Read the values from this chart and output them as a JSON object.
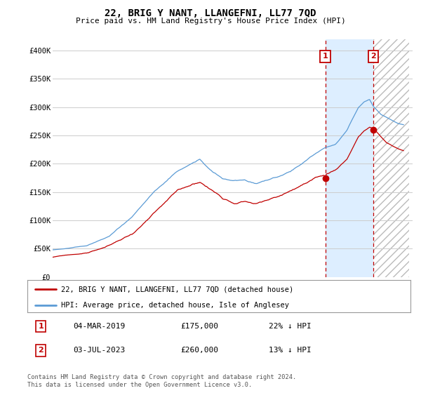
{
  "title": "22, BRIG Y NANT, LLANGEFNI, LL77 7QD",
  "subtitle": "Price paid vs. HM Land Registry's House Price Index (HPI)",
  "ylim": [
    0,
    420000
  ],
  "yticks": [
    0,
    50000,
    100000,
    150000,
    200000,
    250000,
    300000,
    350000,
    400000
  ],
  "ytick_labels": [
    "£0",
    "£50K",
    "£100K",
    "£150K",
    "£200K",
    "£250K",
    "£300K",
    "£350K",
    "£400K"
  ],
  "hpi_color": "#5b9bd5",
  "price_color": "#c00000",
  "shade_color": "#ddeeff",
  "hatch_color": "#cccccc",
  "marker1_month": 289,
  "marker2_month": 340,
  "marker1_label": "1",
  "marker2_label": "2",
  "marker1_price_val": 175000,
  "marker2_price_val": 260000,
  "marker1_date": "04-MAR-2019",
  "marker1_price": "£175,000",
  "marker1_pct": "22% ↓ HPI",
  "marker2_date": "03-JUL-2023",
  "marker2_price": "£260,000",
  "marker2_pct": "13% ↓ HPI",
  "legend_line1": "22, BRIG Y NANT, LLANGEFNI, LL77 7QD (detached house)",
  "legend_line2": "HPI: Average price, detached house, Isle of Anglesey",
  "footer": "Contains HM Land Registry data © Crown copyright and database right 2024.\nThis data is licensed under the Open Government Licence v3.0.",
  "background_color": "#ffffff",
  "grid_color": "#cccccc",
  "start_year": 1995,
  "end_year": 2026,
  "n_months": 373
}
